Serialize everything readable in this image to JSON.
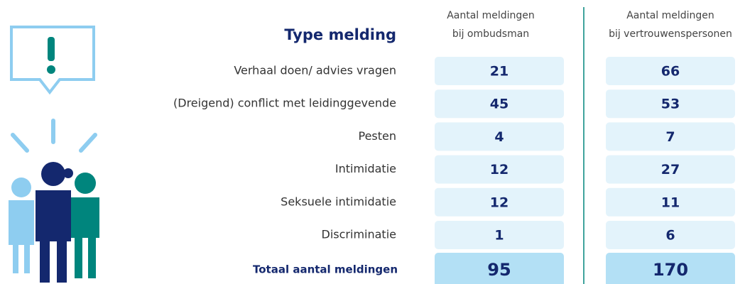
{
  "header": {
    "title": "Type melding",
    "columns": [
      [
        "Aantal meldingen",
        "bij ombudsman"
      ],
      [
        "Aantal meldingen",
        "bij vertrouwenspersonen"
      ]
    ]
  },
  "table": {
    "rows": [
      {
        "label": "Verhaal doen/ advies vragen",
        "values": [
          21,
          66
        ]
      },
      {
        "label": "(Dreigend) conflict met leidinggevende",
        "values": [
          45,
          53
        ]
      },
      {
        "label": "Pesten",
        "values": [
          4,
          7
        ]
      },
      {
        "label": "Intimidatie",
        "values": [
          12,
          27
        ]
      },
      {
        "label": "Seksuele intimidatie",
        "values": [
          12,
          11
        ]
      },
      {
        "label": "Discriminatie",
        "values": [
          1,
          6
        ]
      }
    ],
    "total": {
      "label": "Totaal aantal meldingen",
      "values": [
        95,
        170
      ]
    }
  }
}
